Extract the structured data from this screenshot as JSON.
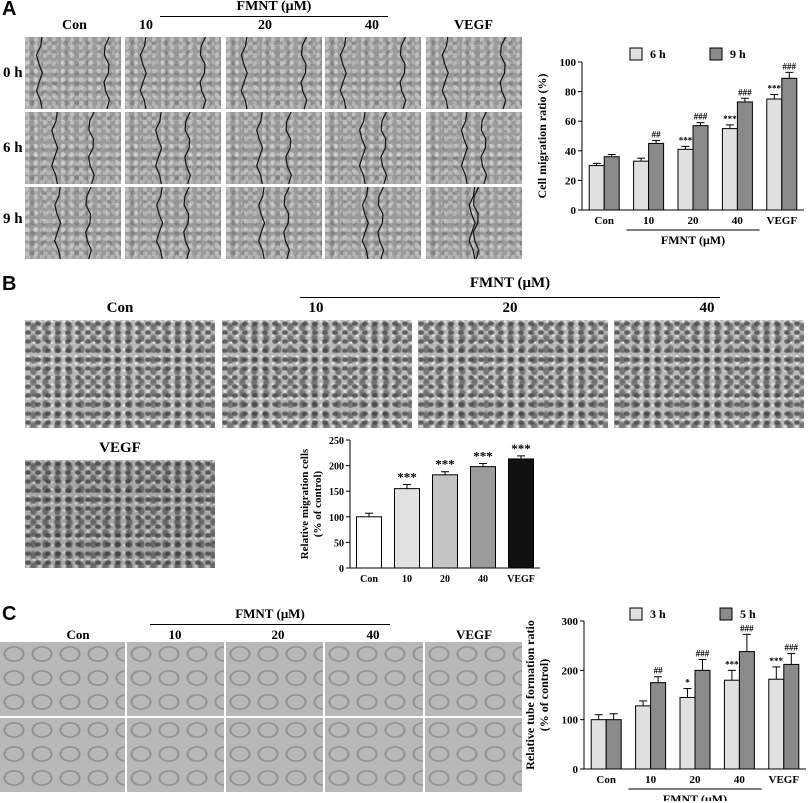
{
  "panels": {
    "A": {
      "letter": "A",
      "group_label": "FMNT (μM)",
      "columns": [
        "Con",
        "10",
        "20",
        "40",
        "VEGF"
      ],
      "rows": [
        "0 h",
        "6 h",
        "9 h"
      ]
    },
    "B": {
      "letter": "B",
      "group_label": "FMNT (μM)",
      "columns": [
        "Con",
        "10",
        "20",
        "40"
      ],
      "extra_image_label": "VEGF"
    },
    "C": {
      "letter": "C",
      "group_label": "FMNT (μM)",
      "columns": [
        "Con",
        "10",
        "20",
        "40",
        "VEGF"
      ],
      "rows": [
        "3 h",
        "5 h"
      ]
    }
  },
  "chart_data": [
    {
      "type": "bar",
      "panel": "A",
      "categories": [
        "Con",
        "10",
        "20",
        "40",
        "VEGF"
      ],
      "series": [
        {
          "name": "6 h",
          "values": [
            30,
            33,
            41,
            55,
            75
          ],
          "errors": [
            1.5,
            2,
            2,
            2.5,
            3
          ],
          "color": "#e0e0e0",
          "marks": [
            "",
            "",
            "***",
            "***",
            "***"
          ]
        },
        {
          "name": "9 h",
          "values": [
            36,
            45,
            57,
            73,
            89
          ],
          "errors": [
            1.5,
            2,
            2,
            2.5,
            4
          ],
          "color": "#8a8a8a",
          "marks": [
            "",
            "##",
            "###",
            "###",
            "###"
          ]
        }
      ],
      "ylabel": "Cell migration ratio (%)",
      "ylim": [
        0,
        100
      ],
      "yticks": [
        0,
        20,
        40,
        60,
        80,
        100
      ],
      "group_label": "FMNT (μM)",
      "legend": "top"
    },
    {
      "type": "bar",
      "panel": "B",
      "categories": [
        "Con",
        "10",
        "20",
        "40",
        "VEGF"
      ],
      "values": [
        100,
        155,
        182,
        198,
        213
      ],
      "errors": [
        7,
        8,
        6,
        6,
        6
      ],
      "colors": [
        "#ffffff",
        "#e2e2e2",
        "#c4c4c4",
        "#9b9b9b",
        "#111111"
      ],
      "marks": [
        "",
        "***",
        "***",
        "***",
        "***"
      ],
      "ylabel": "Relative migration cells\n(% of control)",
      "ylim": [
        0,
        250
      ],
      "yticks": [
        0,
        50,
        100,
        150,
        200,
        250
      ]
    },
    {
      "type": "bar",
      "panel": "C",
      "categories": [
        "Con",
        "10",
        "20",
        "40",
        "VEGF"
      ],
      "series": [
        {
          "name": "3 h",
          "values": [
            100,
            128,
            145,
            180,
            182
          ],
          "errors": [
            10,
            10,
            18,
            20,
            25
          ],
          "color": "#e0e0e0",
          "marks": [
            "",
            "",
            "*",
            "***",
            "***"
          ]
        },
        {
          "name": "5 h",
          "values": [
            100,
            175,
            200,
            238,
            212
          ],
          "errors": [
            12,
            12,
            22,
            35,
            22
          ],
          "color": "#8a8a8a",
          "marks": [
            "",
            "##",
            "###",
            "###",
            "###"
          ]
        }
      ],
      "ylabel": "Relative tube formation ratio\n(% of control)",
      "ylim": [
        0,
        300
      ],
      "yticks": [
        0,
        100,
        200,
        300
      ],
      "group_label": "FMNT (μM)",
      "legend": "top"
    }
  ]
}
